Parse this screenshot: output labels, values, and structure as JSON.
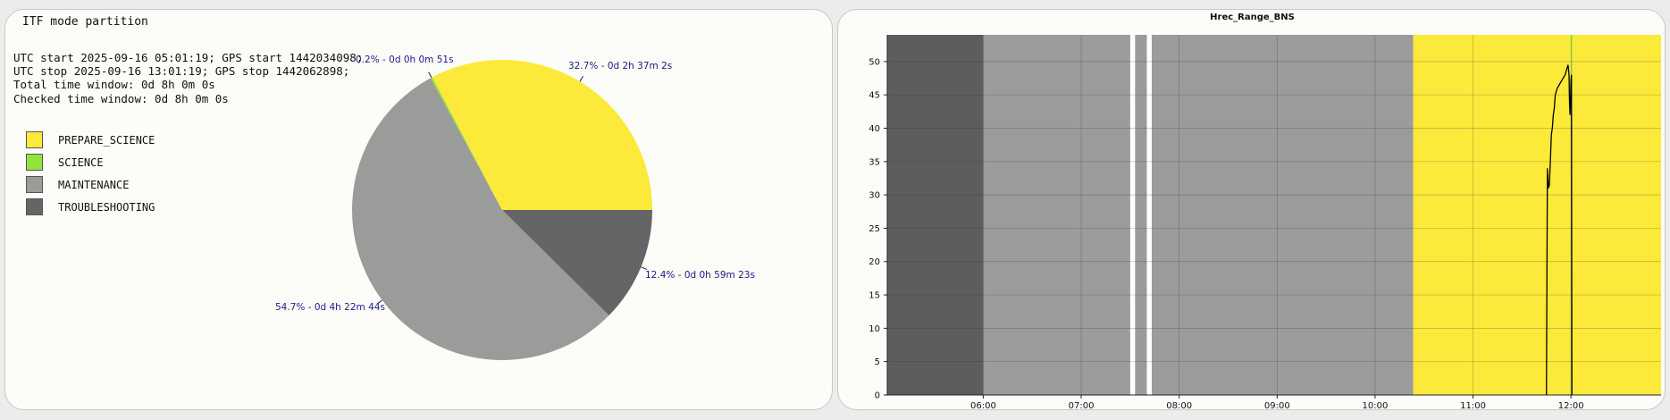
{
  "left": {
    "title": "ITF mode partition",
    "info_lines": [
      "UTC start 2025-09-16 05:01:19; GPS start 1442034098;",
      "UTC stop 2025-09-16 13:01:19; GPS stop 1442062898;",
      "Total time window: 0d 8h 0m 0s",
      "Checked time window: 0d 8h 0m 0s"
    ],
    "legend": [
      {
        "label": "PREPARE_SCIENCE",
        "color": "#fde93a"
      },
      {
        "label": "SCIENCE",
        "color": "#96e23c"
      },
      {
        "label": "MAINTENANCE",
        "color": "#9b9c99"
      },
      {
        "label": "TROUBLESHOOTING",
        "color": "#656467"
      }
    ]
  },
  "chart_data": [
    {
      "type": "pie",
      "title": "",
      "slices": [
        {
          "name": "PREPARE_SCIENCE",
          "percent": 32.7,
          "label": "32.7% - 0d 2h 37m 2s",
          "color": "#fde93a"
        },
        {
          "name": "SCIENCE",
          "percent": 0.2,
          "label": "0.2% - 0d 0h 0m 51s",
          "color": "#96e23c"
        },
        {
          "name": "MAINTENANCE",
          "percent": 54.7,
          "label": "54.7% - 0d 4h 22m 44s",
          "color": "#9b9c99"
        },
        {
          "name": "TROUBLESHOOTING",
          "percent": 12.4,
          "label": "12.4% - 0d 0h 59m 23s",
          "color": "#656467"
        }
      ]
    },
    {
      "type": "line",
      "title": "Hrec_Range_BNS",
      "xlabel": "",
      "ylabel": "",
      "x_ticks": [
        "06:00",
        "07:00",
        "08:00",
        "09:00",
        "10:00",
        "11:00",
        "12:00"
      ],
      "x_tick_values": [
        6,
        7,
        8,
        9,
        10,
        11,
        12
      ],
      "xlim": [
        5.02,
        12.92
      ],
      "y_ticks": [
        "0",
        "5",
        "10",
        "15",
        "20",
        "25",
        "30",
        "35",
        "40",
        "45",
        "50"
      ],
      "ylim": [
        0,
        54
      ],
      "grid": true,
      "background_bands": [
        {
          "mode": "TROUBLESHOOTING",
          "start": 5.02,
          "end": 6.0,
          "color": "#5d5d5d"
        },
        {
          "mode": "MAINTENANCE",
          "start": 6.0,
          "end": 7.5,
          "color": "#9b9b9b"
        },
        {
          "mode": "MAINTENANCE",
          "start": 7.55,
          "end": 7.67,
          "color": "#9b9b9b"
        },
        {
          "mode": "MAINTENANCE",
          "start": 7.72,
          "end": 10.39,
          "color": "#9b9b9b"
        },
        {
          "mode": "PREPARE_SCIENCE",
          "start": 10.39,
          "end": 12.0,
          "color": "#fde93a"
        },
        {
          "mode": "SCIENCE",
          "start": 12.0,
          "end": 12.015,
          "color": "#96e23c"
        },
        {
          "mode": "PREPARE_SCIENCE",
          "start": 12.015,
          "end": 12.92,
          "color": "#fde93a"
        }
      ],
      "series": [
        {
          "color": "#000000",
          "segments": [
            [
              [
                11.75,
                0
              ],
              [
                11.76,
                34
              ],
              [
                11.77,
                31
              ],
              [
                11.78,
                31.5
              ],
              [
                11.79,
                35
              ],
              [
                11.8,
                39
              ],
              [
                11.81,
                40
              ],
              [
                11.82,
                42
              ],
              [
                11.83,
                43
              ],
              [
                11.84,
                45
              ],
              [
                11.86,
                46
              ],
              [
                11.88,
                46.5
              ],
              [
                11.9,
                47
              ],
              [
                11.92,
                47.5
              ],
              [
                11.94,
                48
              ],
              [
                11.96,
                49
              ],
              [
                11.97,
                49.5
              ],
              [
                11.98,
                48
              ],
              [
                11.985,
                44
              ],
              [
                11.99,
                42
              ],
              [
                11.995,
                44
              ],
              [
                12.0,
                47
              ],
              [
                12.005,
                48
              ],
              [
                12.01,
                0
              ]
            ]
          ]
        }
      ]
    }
  ]
}
